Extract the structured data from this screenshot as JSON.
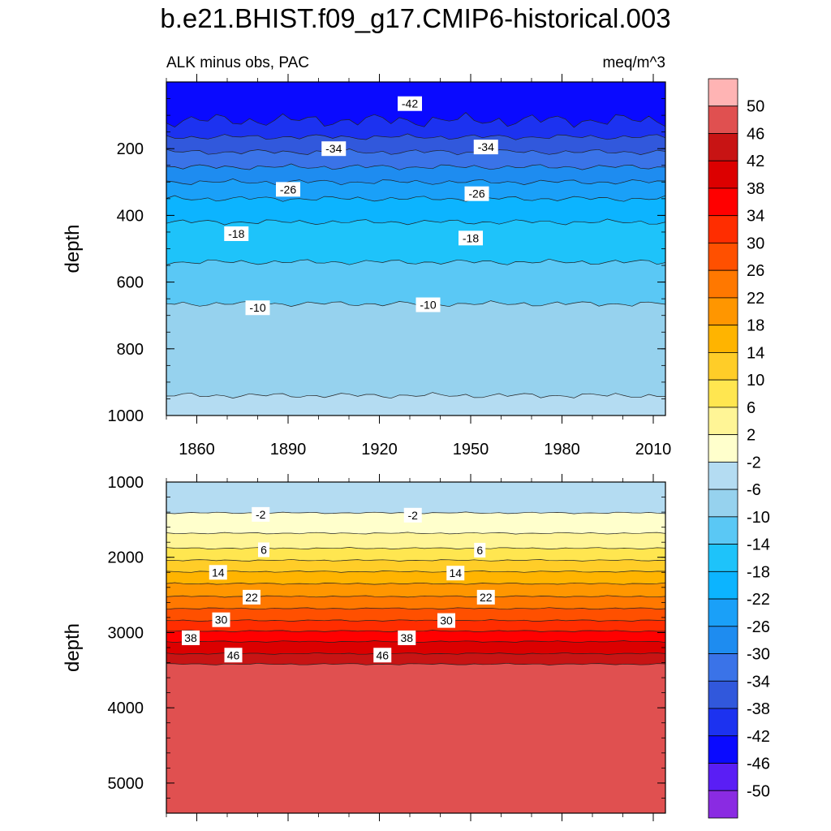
{
  "title": "b.e21.BHIST.f09_g17.CMIP6-historical.003",
  "panel_left_label": "ALK minus obs, PAC",
  "panel_right_label": "meq/m^3",
  "colors": {
    "levels": [
      -50,
      -46,
      -42,
      -38,
      -34,
      -30,
      -26,
      -22,
      -18,
      -14,
      -10,
      -6,
      -2,
      2,
      6,
      10,
      14,
      18,
      22,
      26,
      30,
      34,
      38,
      42,
      46,
      50
    ],
    "fills": [
      "#8a2be2",
      "#5a1ef5",
      "#0a0aff",
      "#1c32f0",
      "#3158dc",
      "#3a73e8",
      "#1e8cf0",
      "#1aa0f8",
      "#0cb4ff",
      "#1ec3fa",
      "#5ac8f5",
      "#96d2ee",
      "#b4dcf2",
      "#ffffcc",
      "#fff596",
      "#ffe650",
      "#ffcd28",
      "#ffb400",
      "#ff9600",
      "#ff7800",
      "#ff5000",
      "#ff2d00",
      "#ff0000",
      "#dc0000",
      "#c81414",
      "#e05050",
      "#ffb4b4"
    ]
  },
  "chart_data": [
    {
      "type": "heatmap",
      "subtype": "contour",
      "ylabel": "depth",
      "xlim": [
        1850,
        2014
      ],
      "ylim": [
        1000,
        0
      ],
      "x_ticks": [
        1860,
        1890,
        1920,
        1950,
        1980,
        2010
      ],
      "y_ticks": [
        200,
        400,
        600,
        800,
        1000
      ],
      "boundaries_depth": [
        {
          "level": -42,
          "depth": 115
        },
        {
          "level": -38,
          "depth": 165
        },
        {
          "level": -34,
          "depth": 210
        },
        {
          "level": -30,
          "depth": 255
        },
        {
          "level": -26,
          "depth": 300
        },
        {
          "level": -22,
          "depth": 350
        },
        {
          "level": -18,
          "depth": 420
        },
        {
          "level": -14,
          "depth": 540
        },
        {
          "level": -10,
          "depth": 665
        },
        {
          "level": -6,
          "depth": 940
        }
      ],
      "contour_labels": [
        {
          "text": "-42",
          "year": 1930,
          "depth": 65
        },
        {
          "text": "-34",
          "year": 1905,
          "depth": 200
        },
        {
          "text": "-34",
          "year": 1955,
          "depth": 195
        },
        {
          "text": "-26",
          "year": 1890,
          "depth": 322
        },
        {
          "text": "-26",
          "year": 1952,
          "depth": 335
        },
        {
          "text": "-18",
          "year": 1873,
          "depth": 455
        },
        {
          "text": "-18",
          "year": 1950,
          "depth": 468
        },
        {
          "text": "-10",
          "year": 1880,
          "depth": 677
        },
        {
          "text": "-10",
          "year": 1936,
          "depth": 668
        }
      ]
    },
    {
      "type": "heatmap",
      "subtype": "contour",
      "ylabel": "depth",
      "xlim": [
        1850,
        2014
      ],
      "ylim": [
        5400,
        1000
      ],
      "y_ticks": [
        1000,
        2000,
        3000,
        4000,
        5000
      ],
      "boundaries_depth": [
        {
          "level": -2,
          "depth": 1410
        },
        {
          "level": 2,
          "depth": 1680
        },
        {
          "level": 6,
          "depth": 1880
        },
        {
          "level": 10,
          "depth": 2040
        },
        {
          "level": 14,
          "depth": 2190
        },
        {
          "level": 18,
          "depth": 2350
        },
        {
          "level": 22,
          "depth": 2520
        },
        {
          "level": 26,
          "depth": 2680
        },
        {
          "level": 30,
          "depth": 2840
        },
        {
          "level": 34,
          "depth": 2980
        },
        {
          "level": 38,
          "depth": 3120
        },
        {
          "level": 42,
          "depth": 3280
        },
        {
          "level": 46,
          "depth": 3420
        }
      ],
      "contour_labels": [
        {
          "text": "-2",
          "year": 1881,
          "depth": 1430
        },
        {
          "text": "-2",
          "year": 1931,
          "depth": 1440
        },
        {
          "text": "6",
          "year": 1882,
          "depth": 1900
        },
        {
          "text": "6",
          "year": 1953,
          "depth": 1905
        },
        {
          "text": "14",
          "year": 1867,
          "depth": 2200
        },
        {
          "text": "14",
          "year": 1945,
          "depth": 2210
        },
        {
          "text": "22",
          "year": 1878,
          "depth": 2530
        },
        {
          "text": "22",
          "year": 1955,
          "depth": 2530
        },
        {
          "text": "30",
          "year": 1868,
          "depth": 2830
        },
        {
          "text": "30",
          "year": 1942,
          "depth": 2840
        },
        {
          "text": "38",
          "year": 1858,
          "depth": 3070
        },
        {
          "text": "38",
          "year": 1929,
          "depth": 3070
        },
        {
          "text": "46",
          "year": 1872,
          "depth": 3300
        },
        {
          "text": "46",
          "year": 1921,
          "depth": 3300
        }
      ]
    }
  ]
}
